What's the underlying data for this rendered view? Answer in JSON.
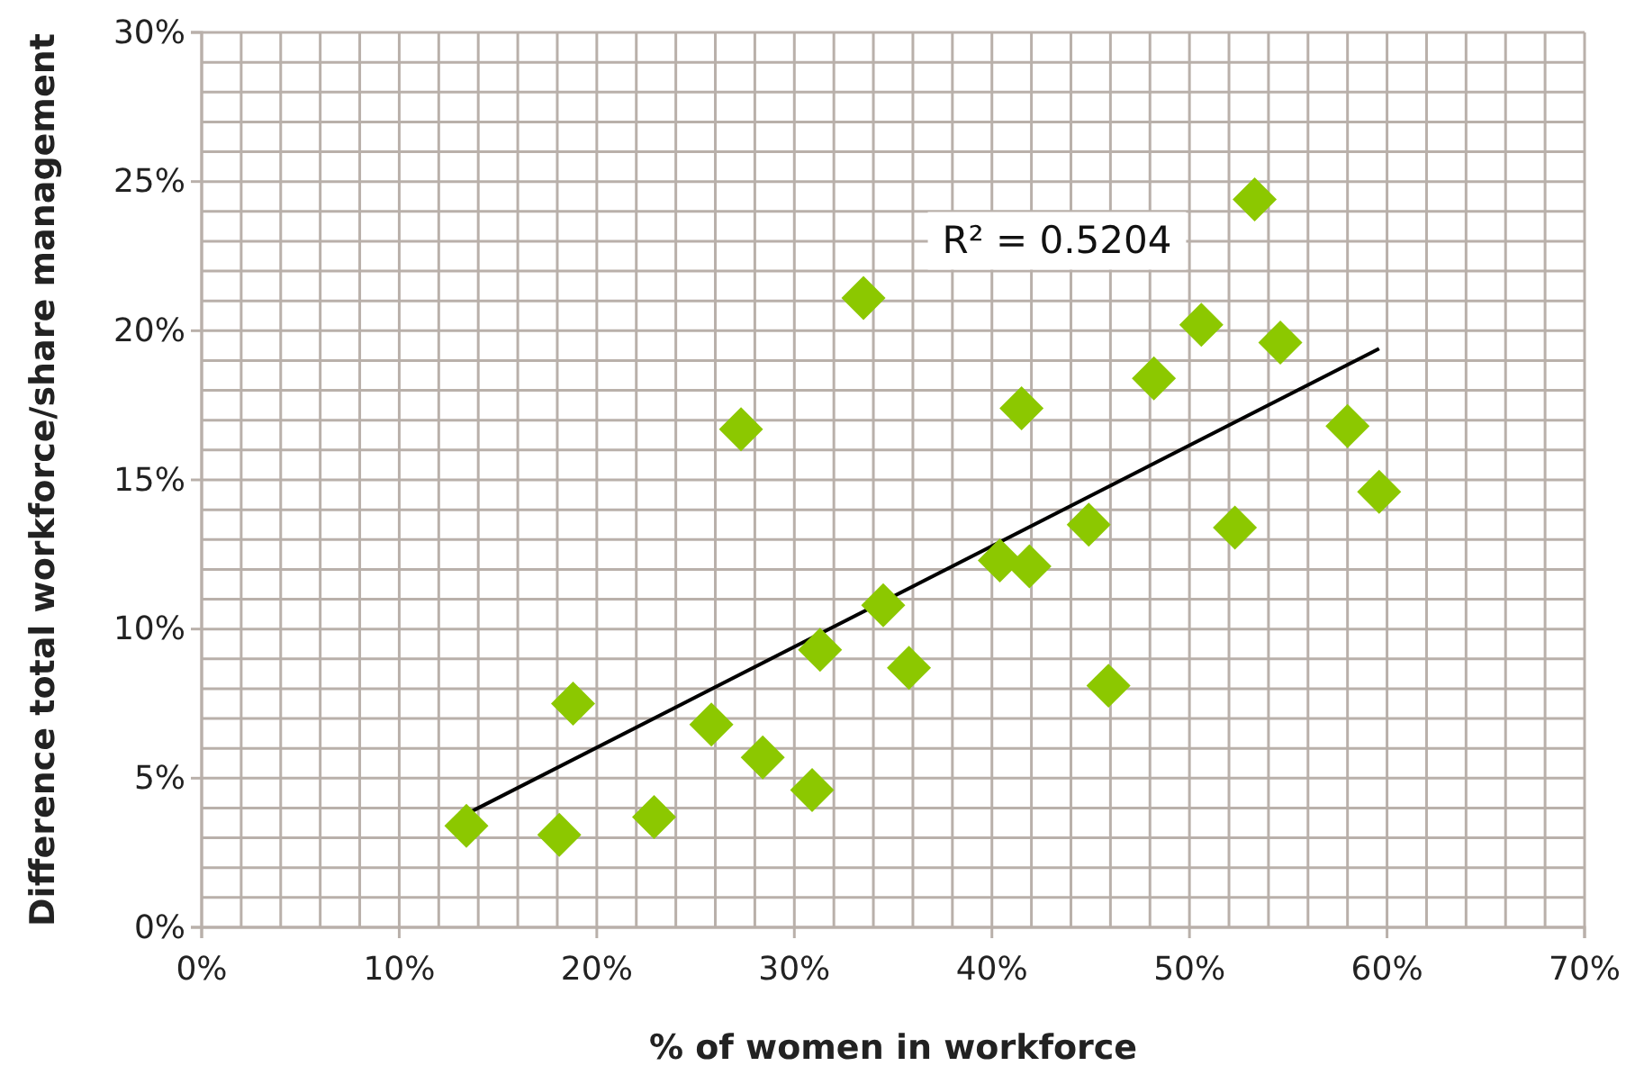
{
  "chart_data": {
    "type": "scatter",
    "xlabel": "% of women in workforce",
    "ylabel": "Difference total workforce/share management",
    "xlim": [
      0,
      70
    ],
    "ylim": [
      0,
      30
    ],
    "xticks": [
      {
        "value": 0,
        "label": "0%"
      },
      {
        "value": 10,
        "label": "10%"
      },
      {
        "value": 20,
        "label": "20%"
      },
      {
        "value": 30,
        "label": "30%"
      },
      {
        "value": 40,
        "label": "40%"
      },
      {
        "value": 50,
        "label": "50%"
      },
      {
        "value": 60,
        "label": "60%"
      },
      {
        "value": 70,
        "label": "70%"
      }
    ],
    "yticks": [
      {
        "value": 0,
        "label": "0%"
      },
      {
        "value": 5,
        "label": "5%"
      },
      {
        "value": 10,
        "label": "10%"
      },
      {
        "value": 15,
        "label": "15%"
      },
      {
        "value": 20,
        "label": "20%"
      },
      {
        "value": 25,
        "label": "25%"
      },
      {
        "value": 30,
        "label": "30%"
      }
    ],
    "grid": true,
    "series": [
      {
        "marker": "diamond",
        "color": "#8cc800",
        "x": [
          13.4,
          18.1,
          18.8,
          22.9,
          25.8,
          27.3,
          28.4,
          30.9,
          31.3,
          33.5,
          34.5,
          35.8,
          40.4,
          41.5,
          41.9,
          44.9,
          45.9,
          48.2,
          50.6,
          52.3,
          53.3,
          54.6,
          58.0,
          59.6
        ],
        "values": [
          3.4,
          3.1,
          7.5,
          3.7,
          6.8,
          16.7,
          5.7,
          4.6,
          9.3,
          21.1,
          10.8,
          8.7,
          12.3,
          17.4,
          12.1,
          13.5,
          8.1,
          18.4,
          20.2,
          13.4,
          24.4,
          19.6,
          16.8,
          14.6
        ]
      },
      {
        "type": "line",
        "marker": "none",
        "color": "#000000",
        "x": [
          13.4,
          59.6
        ],
        "values": [
          3.8,
          19.4
        ]
      }
    ],
    "annotations": [
      "R² = 0.5204"
    ]
  }
}
